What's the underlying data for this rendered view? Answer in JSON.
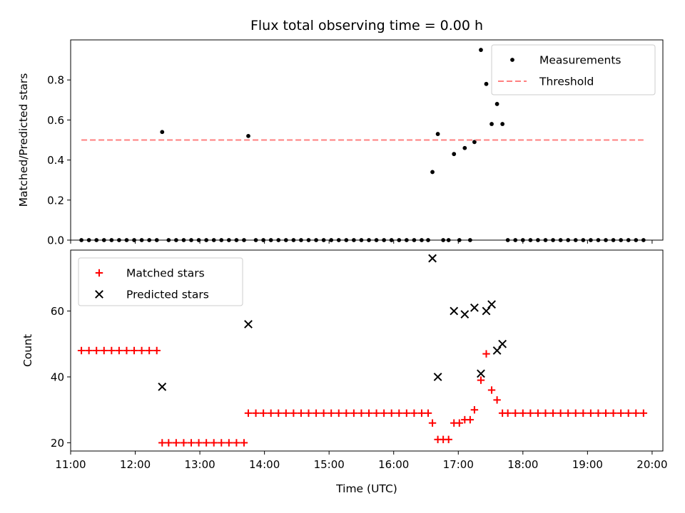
{
  "title": "Flux total observing time = 0.00 h",
  "colors": {
    "matched": "#ff0000",
    "predicted": "#000000",
    "measurement": "#000000",
    "threshold": "#ff7f7f"
  },
  "chart_data": [
    {
      "type": "scatter",
      "title": "Flux total observing time = 0.00 h",
      "xlabel": "",
      "ylabel": "Matched/Predicted stars",
      "xlim": [
        "11:00",
        "20:10"
      ],
      "ylim": [
        0,
        1.0
      ],
      "yticks": [
        "0.0",
        "0.2",
        "0.4",
        "0.6",
        "0.8"
      ],
      "legend": [
        "Measurements",
        "Threshold"
      ],
      "legend_position": "top-right",
      "series": [
        {
          "name": "Measurements",
          "marker": "dot",
          "points": [
            [
              "11:10",
              0
            ],
            [
              "11:17",
              0
            ],
            [
              "11:24",
              0
            ],
            [
              "11:31",
              0
            ],
            [
              "11:38",
              0
            ],
            [
              "11:45",
              0
            ],
            [
              "11:52",
              0
            ],
            [
              "11:59",
              0
            ],
            [
              "12:06",
              0
            ],
            [
              "12:13",
              0
            ],
            [
              "12:20",
              0
            ],
            [
              "12:25",
              0.54
            ],
            [
              "12:31",
              0
            ],
            [
              "12:38",
              0
            ],
            [
              "12:45",
              0
            ],
            [
              "12:52",
              0
            ],
            [
              "12:59",
              0
            ],
            [
              "13:06",
              0
            ],
            [
              "13:13",
              0
            ],
            [
              "13:20",
              0
            ],
            [
              "13:27",
              0
            ],
            [
              "13:34",
              0
            ],
            [
              "13:41",
              0
            ],
            [
              "13:45",
              0.52
            ],
            [
              "13:52",
              0
            ],
            [
              "13:59",
              0
            ],
            [
              "14:06",
              0
            ],
            [
              "14:13",
              0
            ],
            [
              "14:20",
              0
            ],
            [
              "14:27",
              0
            ],
            [
              "14:34",
              0
            ],
            [
              "14:41",
              0
            ],
            [
              "14:48",
              0
            ],
            [
              "14:55",
              0
            ],
            [
              "15:02",
              0
            ],
            [
              "15:09",
              0
            ],
            [
              "15:16",
              0
            ],
            [
              "15:23",
              0
            ],
            [
              "15:30",
              0
            ],
            [
              "15:37",
              0
            ],
            [
              "15:44",
              0
            ],
            [
              "15:51",
              0
            ],
            [
              "15:58",
              0
            ],
            [
              "16:05",
              0
            ],
            [
              "16:12",
              0
            ],
            [
              "16:19",
              0
            ],
            [
              "16:26",
              0
            ],
            [
              "16:32",
              0
            ],
            [
              "16:36",
              0.34
            ],
            [
              "16:41",
              0.53
            ],
            [
              "16:46",
              0
            ],
            [
              "16:51",
              0
            ],
            [
              "16:56",
              0.43
            ],
            [
              "17:01",
              0
            ],
            [
              "17:06",
              0.46
            ],
            [
              "17:11",
              0
            ],
            [
              "17:15",
              0.49
            ],
            [
              "17:21",
              0.95
            ],
            [
              "17:26",
              0.78
            ],
            [
              "17:31",
              0.58
            ],
            [
              "17:36",
              0.68
            ],
            [
              "17:41",
              0.58
            ],
            [
              "17:46",
              0
            ],
            [
              "17:53",
              0
            ],
            [
              "18:00",
              0
            ],
            [
              "18:07",
              0
            ],
            [
              "18:14",
              0
            ],
            [
              "18:21",
              0
            ],
            [
              "18:28",
              0
            ],
            [
              "18:35",
              0
            ],
            [
              "18:42",
              0
            ],
            [
              "18:49",
              0
            ],
            [
              "18:56",
              0
            ],
            [
              "19:03",
              0
            ],
            [
              "19:10",
              0
            ],
            [
              "19:17",
              0
            ],
            [
              "19:24",
              0
            ],
            [
              "19:31",
              0
            ],
            [
              "19:38",
              0
            ],
            [
              "19:45",
              0
            ],
            [
              "19:52",
              0
            ]
          ]
        },
        {
          "name": "Threshold",
          "marker": "dashed-line",
          "points": [
            [
              "11:10",
              0.5
            ],
            [
              "19:52",
              0.5
            ]
          ]
        }
      ]
    },
    {
      "type": "scatter",
      "xlabel": "Time (UTC)",
      "ylabel": "Count",
      "xlim": [
        "11:00",
        "20:10"
      ],
      "ylim": [
        17.5,
        78.5
      ],
      "yticks": [
        "20",
        "40",
        "60"
      ],
      "xticks": [
        "11:00",
        "12:00",
        "13:00",
        "14:00",
        "15:00",
        "16:00",
        "17:00",
        "18:00",
        "19:00",
        "20:00"
      ],
      "legend": [
        "Matched stars",
        "Predicted stars"
      ],
      "legend_position": "top-left",
      "series": [
        {
          "name": "Matched stars",
          "marker": "plus",
          "points": [
            [
              "11:10",
              48
            ],
            [
              "11:17",
              48
            ],
            [
              "11:24",
              48
            ],
            [
              "11:31",
              48
            ],
            [
              "11:38",
              48
            ],
            [
              "11:45",
              48
            ],
            [
              "11:52",
              48
            ],
            [
              "11:59",
              48
            ],
            [
              "12:06",
              48
            ],
            [
              "12:13",
              48
            ],
            [
              "12:20",
              48
            ],
            [
              "12:25",
              20
            ],
            [
              "12:31",
              20
            ],
            [
              "12:38",
              20
            ],
            [
              "12:45",
              20
            ],
            [
              "12:52",
              20
            ],
            [
              "12:59",
              20
            ],
            [
              "13:06",
              20
            ],
            [
              "13:13",
              20
            ],
            [
              "13:20",
              20
            ],
            [
              "13:27",
              20
            ],
            [
              "13:34",
              20
            ],
            [
              "13:41",
              20
            ],
            [
              "13:45",
              29
            ],
            [
              "13:52",
              29
            ],
            [
              "13:59",
              29
            ],
            [
              "14:06",
              29
            ],
            [
              "14:13",
              29
            ],
            [
              "14:20",
              29
            ],
            [
              "14:27",
              29
            ],
            [
              "14:34",
              29
            ],
            [
              "14:41",
              29
            ],
            [
              "14:48",
              29
            ],
            [
              "14:55",
              29
            ],
            [
              "15:02",
              29
            ],
            [
              "15:09",
              29
            ],
            [
              "15:16",
              29
            ],
            [
              "15:23",
              29
            ],
            [
              "15:30",
              29
            ],
            [
              "15:37",
              29
            ],
            [
              "15:44",
              29
            ],
            [
              "15:51",
              29
            ],
            [
              "15:58",
              29
            ],
            [
              "16:05",
              29
            ],
            [
              "16:12",
              29
            ],
            [
              "16:19",
              29
            ],
            [
              "16:26",
              29
            ],
            [
              "16:32",
              29
            ],
            [
              "16:36",
              26
            ],
            [
              "16:41",
              21
            ],
            [
              "16:46",
              21
            ],
            [
              "16:51",
              21
            ],
            [
              "16:56",
              26
            ],
            [
              "17:01",
              26
            ],
            [
              "17:06",
              27
            ],
            [
              "17:11",
              27
            ],
            [
              "17:15",
              30
            ],
            [
              "17:21",
              39
            ],
            [
              "17:26",
              47
            ],
            [
              "17:31",
              36
            ],
            [
              "17:36",
              33
            ],
            [
              "17:41",
              29
            ],
            [
              "17:46",
              29
            ],
            [
              "17:53",
              29
            ],
            [
              "18:00",
              29
            ],
            [
              "18:07",
              29
            ],
            [
              "18:14",
              29
            ],
            [
              "18:21",
              29
            ],
            [
              "18:28",
              29
            ],
            [
              "18:35",
              29
            ],
            [
              "18:42",
              29
            ],
            [
              "18:49",
              29
            ],
            [
              "18:56",
              29
            ],
            [
              "19:03",
              29
            ],
            [
              "19:10",
              29
            ],
            [
              "19:17",
              29
            ],
            [
              "19:24",
              29
            ],
            [
              "19:31",
              29
            ],
            [
              "19:38",
              29
            ],
            [
              "19:45",
              29
            ],
            [
              "19:52",
              29
            ]
          ]
        },
        {
          "name": "Predicted stars",
          "marker": "x",
          "points": [
            [
              "12:25",
              37
            ],
            [
              "13:45",
              56
            ],
            [
              "16:36",
              76
            ],
            [
              "16:41",
              40
            ],
            [
              "16:56",
              60
            ],
            [
              "17:06",
              59
            ],
            [
              "17:15",
              61
            ],
            [
              "17:21",
              41
            ],
            [
              "17:26",
              60
            ],
            [
              "17:31",
              62
            ],
            [
              "17:36",
              48
            ],
            [
              "17:41",
              50
            ]
          ]
        }
      ]
    }
  ]
}
